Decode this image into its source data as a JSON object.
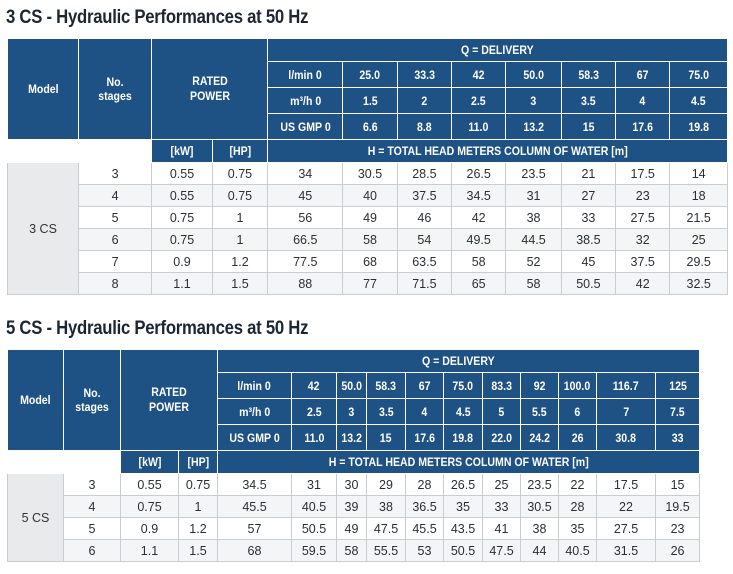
{
  "table1": {
    "title": "3 CS - Hydraulic Performances at 50 Hz",
    "model_label": "Model",
    "stages_label": "No. stages",
    "rated_power_label": "RATED POWER",
    "delivery_label": "Q = DELIVERY",
    "lmin_label": "l/min 0",
    "m3h_label": "m³/h 0",
    "usgpm_label": "US GMP 0",
    "kw_label": "[kW]",
    "hp_label": "[HP]",
    "head_label": "H = TOTAL HEAD METERS COLUMN OF WATER [m]",
    "lmin": [
      "25.0",
      "33.3",
      "42",
      "50.0",
      "58.3",
      "67",
      "75.0"
    ],
    "m3h": [
      "1.5",
      "2",
      "2.5",
      "3",
      "3.5",
      "4",
      "4.5"
    ],
    "usgpm": [
      "6.6",
      "8.8",
      "11.0",
      "13.2",
      "15",
      "17.6",
      "19.8"
    ],
    "model": "3 CS",
    "rows": [
      {
        "stages": "3",
        "kw": "0.55",
        "hp": "0.75",
        "h0": "34",
        "heads": [
          "30.5",
          "28.5",
          "26.5",
          "23.5",
          "21",
          "17.5",
          "14"
        ]
      },
      {
        "stages": "4",
        "kw": "0.55",
        "hp": "0.75",
        "h0": "45",
        "heads": [
          "40",
          "37.5",
          "34.5",
          "31",
          "27",
          "23",
          "18"
        ]
      },
      {
        "stages": "5",
        "kw": "0.75",
        "hp": "1",
        "h0": "56",
        "heads": [
          "49",
          "46",
          "42",
          "38",
          "33",
          "27.5",
          "21.5"
        ]
      },
      {
        "stages": "6",
        "kw": "0.75",
        "hp": "1",
        "h0": "66.5",
        "heads": [
          "58",
          "54",
          "49.5",
          "44.5",
          "38.5",
          "32",
          "25"
        ]
      },
      {
        "stages": "7",
        "kw": "0.9",
        "hp": "1.2",
        "h0": "77.5",
        "heads": [
          "68",
          "63.5",
          "58",
          "52",
          "45",
          "37.5",
          "29.5"
        ]
      },
      {
        "stages": "8",
        "kw": "1.1",
        "hp": "1.5",
        "h0": "88",
        "heads": [
          "77",
          "71.5",
          "65",
          "58",
          "50.5",
          "42",
          "32.5"
        ]
      }
    ]
  },
  "table2": {
    "title": "5 CS - Hydraulic Performances at 50 Hz",
    "model_label": "Model",
    "stages_label": "No. stages",
    "rated_power_label": "RATED POWER",
    "delivery_label": "Q = DELIVERY",
    "lmin_label": "l/min 0",
    "m3h_label": "m³/h 0",
    "usgpm_label": "US GMP 0",
    "kw_label": "[kW]",
    "hp_label": "[HP]",
    "head_label": "H = TOTAL HEAD METERS COLUMN OF WATER [m]",
    "lmin": [
      "42",
      "50.0",
      "58.3",
      "67",
      "75.0",
      "83.3",
      "92",
      "100.0",
      "116.7",
      "125"
    ],
    "m3h": [
      "2.5",
      "3",
      "3.5",
      "4",
      "4.5",
      "5",
      "5.5",
      "6",
      "7",
      "7.5"
    ],
    "usgpm": [
      "11.0",
      "13.2",
      "15",
      "17.6",
      "19.8",
      "22.0",
      "24.2",
      "26",
      "30.8",
      "33"
    ],
    "model": "5 CS",
    "rows": [
      {
        "stages": "3",
        "kw": "0.55",
        "hp": "0.75",
        "h0": "34.5",
        "heads": [
          "31",
          "30",
          "29",
          "28",
          "26.5",
          "25",
          "23.5",
          "22",
          "17.5",
          "15"
        ]
      },
      {
        "stages": "4",
        "kw": "0.75",
        "hp": "1",
        "h0": "45.5",
        "heads": [
          "40.5",
          "39",
          "38",
          "36.5",
          "35",
          "33",
          "30.5",
          "28",
          "22",
          "19.5"
        ]
      },
      {
        "stages": "5",
        "kw": "0.9",
        "hp": "1.2",
        "h0": "57",
        "heads": [
          "50.5",
          "49",
          "47.5",
          "45.5",
          "43.5",
          "41",
          "38",
          "35",
          "27.5",
          "23"
        ]
      },
      {
        "stages": "6",
        "kw": "1.1",
        "hp": "1.5",
        "h0": "68",
        "heads": [
          "59.5",
          "58",
          "55.5",
          "53",
          "50.5",
          "47.5",
          "44",
          "40.5",
          "31.5",
          "26"
        ]
      }
    ]
  }
}
